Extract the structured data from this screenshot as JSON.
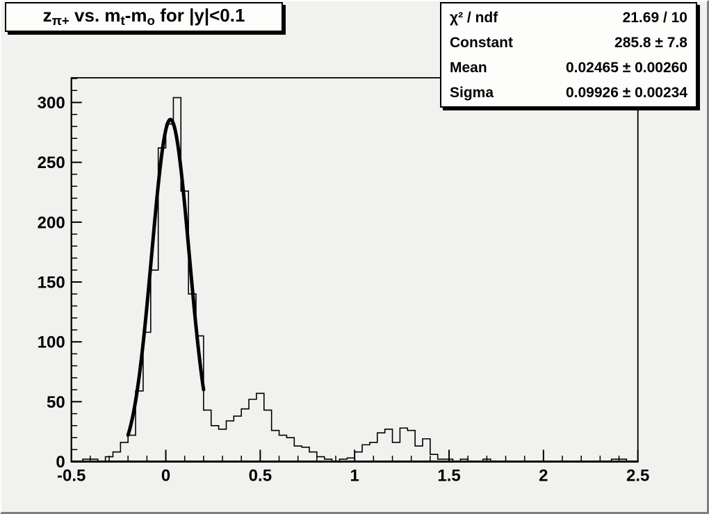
{
  "canvas": {
    "background": "#f1f1ef",
    "box_background": "#fdfdfb",
    "line_color": "#000000",
    "bevel_light": "#fcfcfc",
    "bevel_dark": "#7f7f7f"
  },
  "title_box": {
    "segments": [
      {
        "t": "z",
        "sub": false
      },
      {
        "t": "π+",
        "sub": true
      },
      {
        "t": " vs. m",
        "sub": false
      },
      {
        "t": "t",
        "sub": true
      },
      {
        "t": "-m",
        "sub": false
      },
      {
        "t": "o",
        "sub": true
      },
      {
        "t": " for |y|<0.1",
        "sub": false
      }
    ],
    "plain_text": "z_{π+} vs. m_{t}-m_{o} for |y|<0.1"
  },
  "stats_box": {
    "rows": [
      {
        "label": "χ² / ndf",
        "value": "21.69 / 10"
      },
      {
        "label": "Constant",
        "value": "285.8 ± 7.8"
      },
      {
        "label": "Mean",
        "value": "0.02465 ± 0.00260"
      },
      {
        "label": "Sigma",
        "value": "0.09926 ± 0.00234"
      }
    ]
  },
  "chart_data": {
    "type": "bar",
    "subtype": "histogram-step",
    "title": "z_{π+} vs. m_{t}-m_{o} for |y|<0.1",
    "xlabel": "",
    "ylabel": "",
    "grid": false,
    "legend_position": "none",
    "x_axis": {
      "min": -0.5,
      "max": 2.5,
      "major_tick_step": 0.5,
      "minor_tick_step": 0.1,
      "tick_labels": [
        "-0.5",
        "0",
        "0.5",
        "1",
        "1.5",
        "2",
        "2.5"
      ]
    },
    "y_axis": {
      "min": 0,
      "max": 320.6,
      "major_tick_step": 50,
      "minor_tick_step": 10,
      "tick_labels": [
        "0",
        "50",
        "100",
        "150",
        "200",
        "250",
        "300"
      ]
    },
    "bins": {
      "start": -0.48,
      "width": 0.04,
      "counts": [
        0,
        2,
        2,
        0,
        4,
        8,
        16,
        22,
        59,
        108,
        160,
        262,
        282,
        304,
        226,
        140,
        105,
        43,
        30,
        27,
        34,
        38,
        44,
        52,
        57,
        43,
        26,
        22,
        20,
        13,
        12,
        8,
        4,
        2,
        0,
        2,
        3,
        8,
        14,
        16,
        24,
        27,
        16,
        28,
        26,
        13,
        19,
        6,
        2,
        2,
        0,
        2,
        0,
        0,
        2,
        0,
        0,
        0,
        0,
        0,
        0,
        0,
        0,
        0,
        0,
        0,
        0,
        0,
        0,
        0,
        0,
        2,
        2,
        0,
        0
      ]
    },
    "fit": {
      "type": "gaussian",
      "constant": 285.8,
      "mean": 0.02465,
      "sigma": 0.09926,
      "chi2": 21.69,
      "ndf": 10,
      "draw_range": [
        -0.2,
        0.2
      ]
    }
  }
}
